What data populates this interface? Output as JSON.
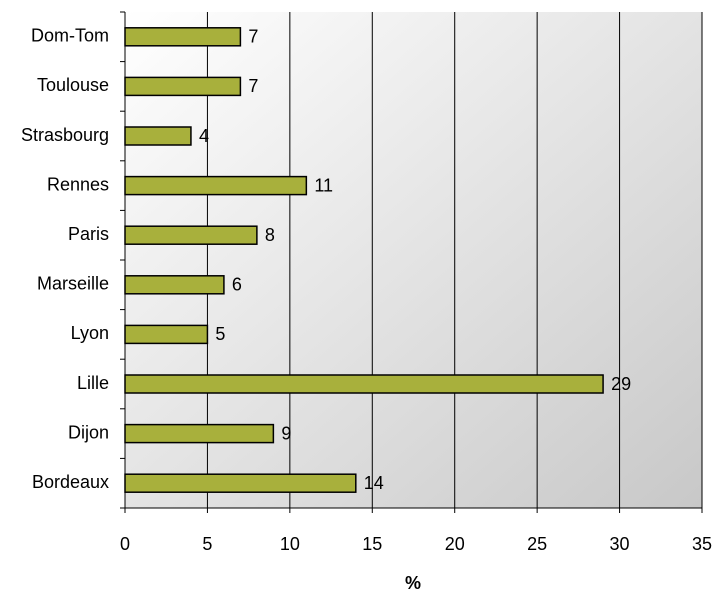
{
  "chart_data": {
    "type": "bar",
    "orientation": "horizontal",
    "categories": [
      "Bordeaux",
      "Dijon",
      "Lille",
      "Lyon",
      "Marseille",
      "Paris",
      "Rennes",
      "Strasbourg",
      "Toulouse",
      "Dom-Tom"
    ],
    "values": [
      14,
      9,
      29,
      5,
      6,
      8,
      11,
      4,
      7,
      7
    ],
    "color": "#a8b03c",
    "xlabel": "%",
    "xlim": [
      0,
      35
    ],
    "xticks": [
      0,
      5,
      10,
      15,
      20,
      25,
      30,
      35
    ],
    "grid": true
  }
}
